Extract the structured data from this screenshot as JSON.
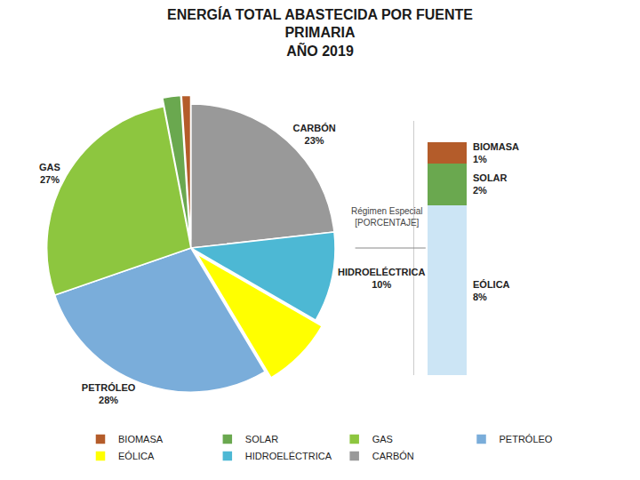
{
  "chart_data": [
    {
      "type": "pie",
      "title": "ENERGÍA TOTAL ABASTECIDA POR FUENTE\nPRIMARIA\nAÑO 2019",
      "categories": [
        "CARBÓN",
        "HIDROELÉCTRICA",
        "EÓLICA",
        "PETRÓLEO",
        "GAS",
        "SOLAR",
        "BIOMASA"
      ],
      "values": [
        23,
        10,
        8,
        28,
        27,
        2,
        1
      ],
      "colors": [
        "#999999",
        "#4db8d4",
        "#ffff00",
        "#7aadda",
        "#8dc63f",
        "#6aa84f",
        "#b45c2a"
      ],
      "value_labels": [
        "CARBÓN\n23%",
        "HIDROELÉCTRICA\n10%",
        null,
        "PETRÓLEO\n28%",
        "GAS\n27%",
        null,
        null
      ],
      "data_labels": true,
      "legend": "bottom",
      "annotations": [
        "Régimen Especial\n[PORCENTAJE]"
      ]
    },
    {
      "type": "bar",
      "stacked": true,
      "categories": [
        null
      ],
      "series": [
        {
          "name": "EÓLICA",
          "color": "#cce5f5",
          "values": [
            8
          ],
          "value_labels": [
            "EÓLICA\n8%"
          ]
        },
        {
          "name": "SOLAR",
          "color": "#6aa84f",
          "values": [
            2
          ],
          "value_labels": [
            "SOLAR\n2%"
          ]
        },
        {
          "name": "BIOMASA",
          "color": "#b45c2a",
          "values": [
            1
          ],
          "value_labels": [
            "BIOMASA\n1%"
          ]
        }
      ],
      "ylim": [
        0,
        12
      ],
      "data_labels": true,
      "tick_labels": false,
      "grid": false
    }
  ]
}
